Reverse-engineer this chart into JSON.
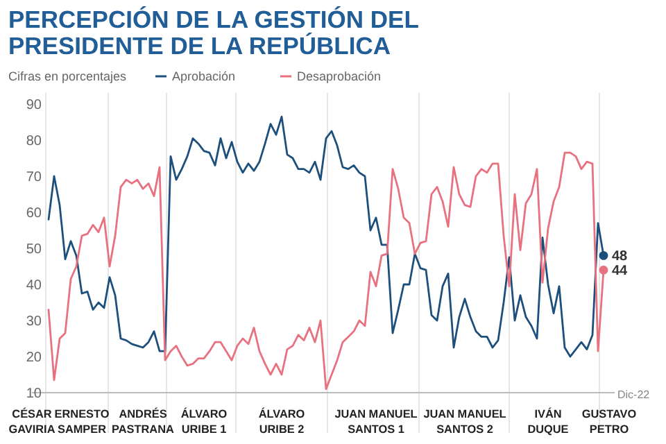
{
  "chart_data": {
    "type": "line",
    "title": "PERCEPCIÓN DE LA GESTIÓN DEL\nPRESIDENTE DE LA REPÚBLICA",
    "subtitle": "Cifras en porcentajes",
    "legend": "top left",
    "annotations": [
      "Dic-22"
    ],
    "ylim": [
      10,
      90
    ],
    "yticks": [
      10,
      20,
      30,
      40,
      50,
      60,
      70,
      80,
      90
    ],
    "categories": [
      "CÉSAR\nGAVIRIA",
      null,
      null,
      null,
      null,
      null,
      null,
      null,
      null,
      "ERNESTO\nSAMPER",
      null,
      null,
      null,
      null,
      null,
      null,
      null,
      null,
      null,
      null,
      "ANDRÉS\nPASTRANA",
      null,
      null,
      null,
      null,
      null,
      null,
      null,
      null,
      null,
      null,
      "ÁLVARO\nURIBE 1",
      null,
      null,
      null,
      null,
      null,
      null,
      null,
      null,
      null,
      null,
      null,
      null,
      null,
      "ÁLVARO\nURIBE 2",
      null,
      null,
      null,
      null,
      null,
      null,
      null,
      null,
      null,
      null,
      null,
      null,
      null,
      null,
      null,
      null,
      "JUAN MANUEL\nSANTOS 1",
      null,
      null,
      null,
      null,
      null,
      null,
      null,
      null,
      null,
      null,
      null,
      null,
      null,
      null,
      null,
      "JUAN MANUEL\nSANTOS 2",
      null,
      null,
      null,
      null,
      null,
      null,
      null,
      null,
      null,
      null,
      null,
      null,
      null,
      null,
      "IVÁN\nDUQUE",
      null,
      null,
      null,
      null,
      null,
      null,
      null,
      null,
      null,
      null,
      "GUSTAVO\nPETRO",
      null
    ],
    "series": [
      {
        "name": "Aprobación",
        "color": "#1d4f7c",
        "values": [
          null,
          null,
          null,
          58,
          70,
          62,
          47,
          52,
          48,
          37.5,
          38,
          33,
          35,
          33.5,
          42,
          37,
          25,
          24.5,
          23.5,
          23,
          22.5,
          24,
          27,
          21.5,
          21.5,
          75.5,
          69,
          72,
          75.5,
          80.5,
          79,
          77,
          76.5,
          73,
          80.5,
          75,
          79.5,
          74,
          71,
          73.5,
          71.5,
          74,
          79,
          84.5,
          81.5,
          86.5,
          76,
          75,
          72,
          72,
          71,
          74,
          69,
          80.5,
          82.5,
          78.5,
          72.5,
          72,
          73,
          71,
          70,
          55,
          58.5,
          51,
          51,
          26.5,
          33,
          40,
          40,
          48.5,
          44.5,
          44,
          31.5,
          30,
          39.5,
          43,
          22.5,
          31,
          36,
          31,
          27,
          25.5,
          25.5,
          22.5,
          24.5,
          35,
          47.5,
          30,
          37,
          31,
          28.5,
          25,
          53,
          40,
          32,
          39.5,
          22.5,
          20,
          22,
          24,
          22,
          26,
          57,
          48,
          null,
          null
        ],
        "value_labels": [
          null,
          null,
          null,
          null,
          null,
          null,
          null,
          null,
          null,
          null,
          null,
          null,
          null,
          null,
          null,
          null,
          null,
          null,
          null,
          null,
          null,
          null,
          null,
          null,
          null,
          null,
          null,
          null,
          null,
          null,
          null,
          null,
          null,
          null,
          null,
          null,
          null,
          null,
          null,
          null,
          null,
          null,
          null,
          null,
          null,
          null,
          null,
          null,
          null,
          null,
          null,
          null,
          null,
          null,
          null,
          null,
          null,
          null,
          null,
          null,
          null,
          null,
          null,
          null,
          null,
          null,
          null,
          null,
          null,
          null,
          null,
          null,
          null,
          null,
          null,
          null,
          null,
          null,
          null,
          null,
          null,
          null,
          null,
          null,
          null,
          null,
          null,
          null,
          null,
          null,
          null,
          null,
          null,
          null,
          null,
          null,
          null,
          null,
          null,
          null,
          null,
          null,
          null,
          "48",
          null,
          null
        ]
      },
      {
        "name": "Desaprobación",
        "color": "#e8717f",
        "values": [
          null,
          null,
          null,
          33,
          13.5,
          25,
          26.5,
          41.5,
          45,
          53.5,
          54,
          56.5,
          54.5,
          58.5,
          45,
          53.5,
          67,
          69,
          68,
          69,
          66.5,
          68,
          64.5,
          72.5,
          19,
          21.5,
          23,
          20,
          17.5,
          18,
          19.5,
          19.5,
          21.5,
          24,
          24,
          21.5,
          19,
          23,
          25,
          23.5,
          28,
          21.5,
          18,
          15,
          18,
          15,
          22,
          23,
          26,
          24.5,
          28,
          24,
          30,
          11,
          15,
          19,
          24,
          25.5,
          27,
          30,
          28.5,
          43.5,
          39.5,
          48,
          48.5,
          72,
          66.5,
          58.5,
          57,
          48.5,
          51.5,
          52,
          65,
          67,
          63,
          56,
          72.5,
          65,
          62,
          61.5,
          70,
          72,
          71,
          73.5,
          73.5,
          53.5,
          39.5,
          65,
          49.5,
          62.5,
          65,
          72,
          40.5,
          55.5,
          63,
          67,
          76.5,
          76.5,
          75.5,
          72,
          74,
          73.5,
          21.5,
          44,
          null,
          null
        ],
        "value_labels": [
          null,
          null,
          null,
          null,
          null,
          null,
          null,
          null,
          null,
          null,
          null,
          null,
          null,
          null,
          null,
          null,
          null,
          null,
          null,
          null,
          null,
          null,
          null,
          null,
          null,
          null,
          null,
          null,
          null,
          null,
          null,
          null,
          null,
          null,
          null,
          null,
          null,
          null,
          null,
          null,
          null,
          null,
          null,
          null,
          null,
          null,
          null,
          null,
          null,
          null,
          null,
          null,
          null,
          null,
          null,
          null,
          null,
          null,
          null,
          null,
          null,
          null,
          null,
          null,
          null,
          null,
          null,
          null,
          null,
          null,
          null,
          null,
          null,
          null,
          null,
          null,
          null,
          null,
          null,
          null,
          null,
          null,
          null,
          null,
          null,
          null,
          null,
          null,
          null,
          null,
          null,
          null,
          null,
          null,
          null,
          null,
          null,
          null,
          null,
          null,
          null,
          null,
          null,
          "44",
          null,
          null
        ]
      }
    ]
  }
}
